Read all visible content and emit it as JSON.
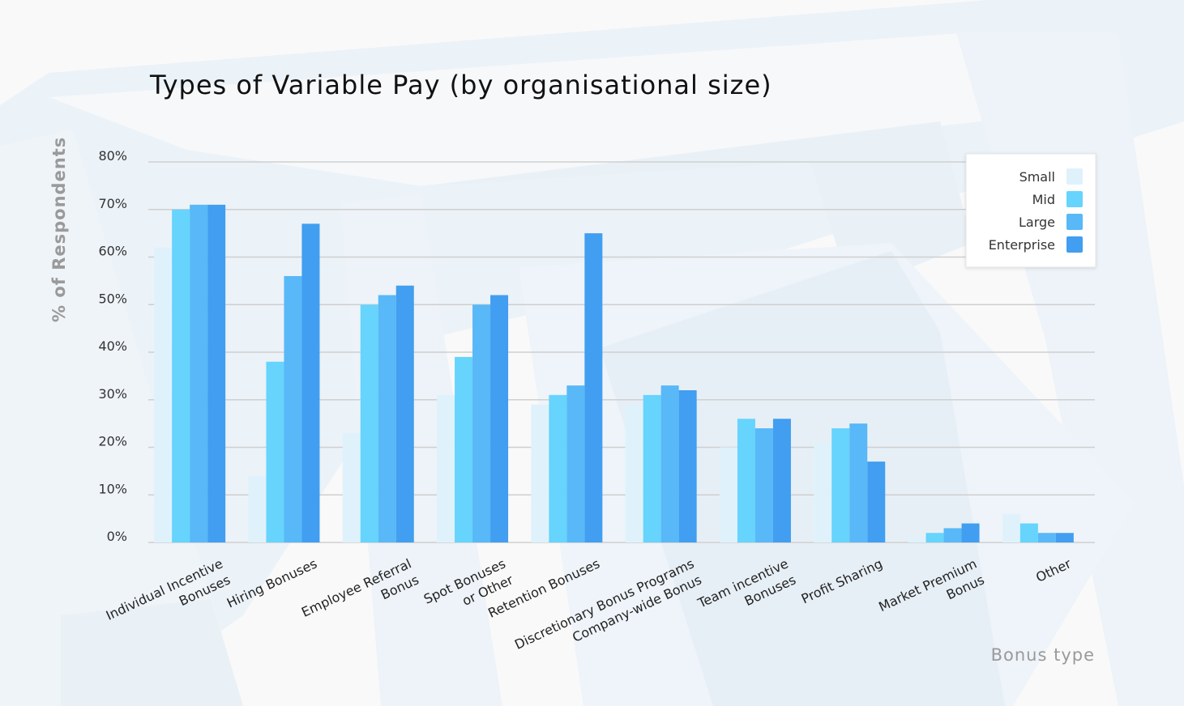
{
  "chart_data": {
    "type": "bar",
    "title": "Types of Variable Pay (by organisational size)",
    "xlabel": "Bonus type",
    "ylabel": "% of Respondents",
    "ylim": [
      0,
      80
    ],
    "ytick_values": [
      0,
      10,
      20,
      30,
      40,
      50,
      60,
      70,
      80
    ],
    "ytick_labels": [
      "0%",
      "10%",
      "20%",
      "30%",
      "40%",
      "50%",
      "60%",
      "70%",
      "80%"
    ],
    "grid": true,
    "legend_position": "top-right",
    "categories": [
      [
        "Individual Incentive",
        "Bonuses"
      ],
      [
        "Hiring Bonuses"
      ],
      [
        "Employee Referral",
        "Bonus"
      ],
      [
        "Spot Bonuses",
        "or Other"
      ],
      [
        "Retention Bonuses"
      ],
      [
        "Discretionary Bonus Programs",
        "Company-wide Bonus"
      ],
      [
        "Team incentive",
        "Bonuses"
      ],
      [
        "Profit Sharing"
      ],
      [
        "Market Premium",
        "Bonus"
      ],
      [
        "Other"
      ]
    ],
    "series": [
      {
        "name": "Small",
        "color": "#dff2fb",
        "values": [
          62,
          14,
          23,
          31,
          29,
          29,
          20,
          21,
          1,
          6
        ]
      },
      {
        "name": "Mid",
        "color": "#66d4fc",
        "values": [
          70,
          38,
          50,
          39,
          31,
          31,
          26,
          24,
          2,
          4
        ]
      },
      {
        "name": "Large",
        "color": "#58b8f8",
        "values": [
          71,
          56,
          52,
          50,
          33,
          33,
          24,
          25,
          3,
          2
        ]
      },
      {
        "name": "Enterprise",
        "color": "#419ef0",
        "values": [
          71,
          67,
          54,
          52,
          65,
          32,
          26,
          17,
          4,
          2
        ]
      }
    ]
  }
}
